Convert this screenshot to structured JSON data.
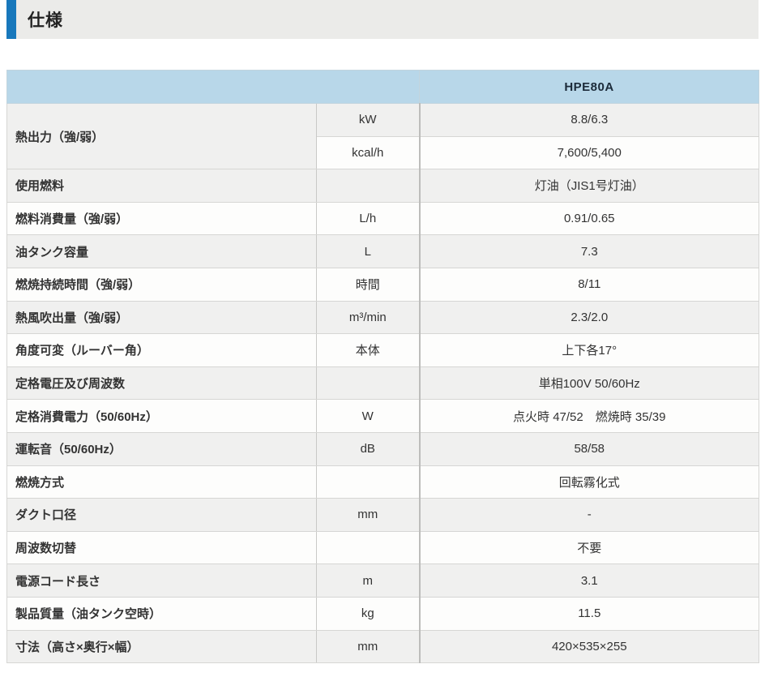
{
  "section": {
    "title": "仕様"
  },
  "colors": {
    "accent_blue": "#1878bc",
    "title_band_bg": "#ebebe9",
    "header_blue": "#b8d7e9",
    "zebra_gray": "#f0f0ef"
  },
  "table": {
    "model": "HPE80A",
    "rows": [
      {
        "label": "熱出力（強/弱）",
        "labelRowspan": 2,
        "unit": "kW",
        "value": "8.8/6.3"
      },
      {
        "label": null,
        "unit": "kcal/h",
        "value": "7,600/5,400"
      },
      {
        "label": "使用燃料",
        "unit": "",
        "value": "灯油（JIS1号灯油）"
      },
      {
        "label": "燃料消費量（強/弱）",
        "unit": "L/h",
        "value": "0.91/0.65"
      },
      {
        "label": "油タンク容量",
        "unit": "L",
        "value": "7.3"
      },
      {
        "label": "燃焼持続時間（強/弱）",
        "unit": "時間",
        "value": "8/11"
      },
      {
        "label": "熱風吹出量（強/弱）",
        "unit": "m³/min",
        "value": "2.3/2.0"
      },
      {
        "label": "角度可変（ルーバー角）",
        "unit": "本体",
        "value": "上下各17°"
      },
      {
        "label": "定格電圧及び周波数",
        "unit": "",
        "value": "単相100V 50/60Hz"
      },
      {
        "label": "定格消費電力（50/60Hz）",
        "unit": "W",
        "value": "点火時 47/52　燃焼時 35/39"
      },
      {
        "label": "運転音（50/60Hz）",
        "unit": "dB",
        "value": "58/58"
      },
      {
        "label": "燃焼方式",
        "unit": "",
        "value": "回転霧化式"
      },
      {
        "label": "ダクト口径",
        "unit": "mm",
        "value": "-"
      },
      {
        "label": "周波数切替",
        "unit": "",
        "value": "不要"
      },
      {
        "label": "電源コード長さ",
        "unit": "m",
        "value": "3.1"
      },
      {
        "label": "製品質量（油タンク空時）",
        "unit": "kg",
        "value": "11.5"
      },
      {
        "label": "寸法（高さ×奥行×幅）",
        "unit": "mm",
        "value": "420×535×255"
      }
    ]
  }
}
